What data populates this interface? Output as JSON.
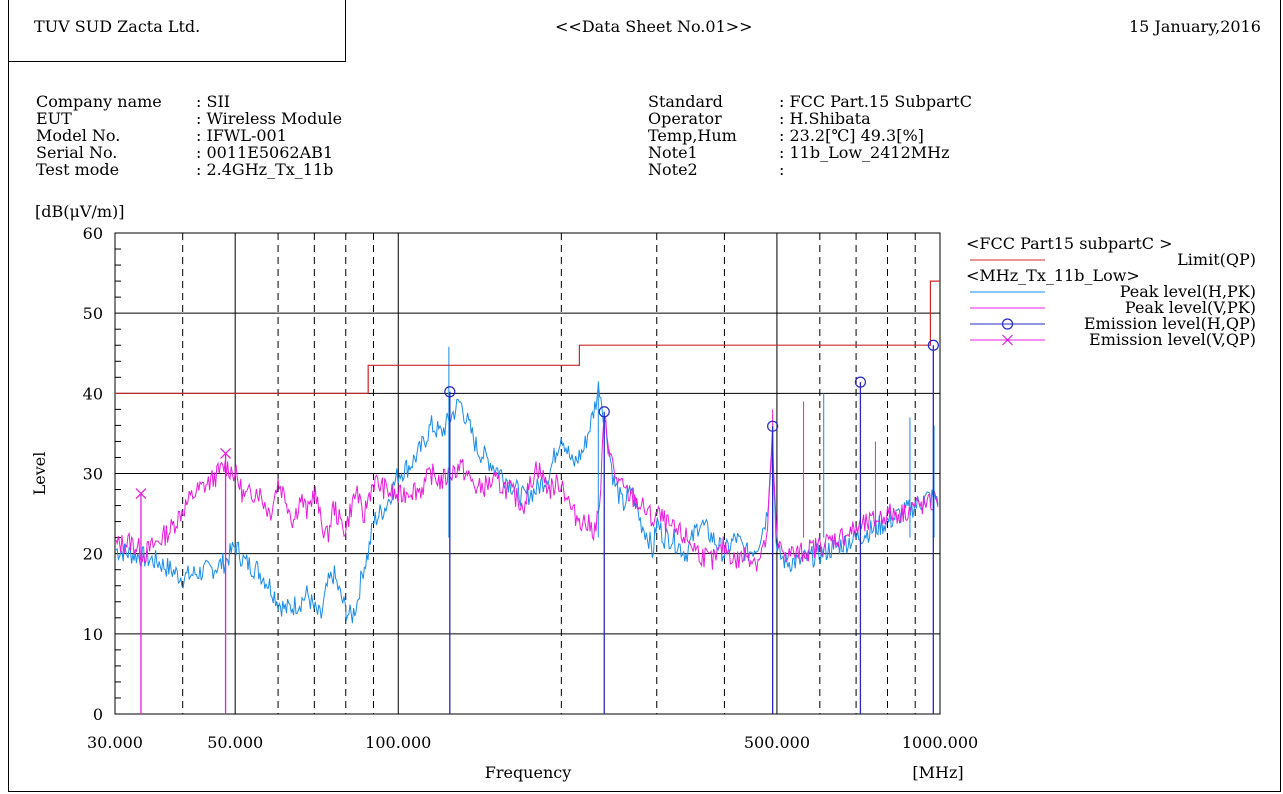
{
  "header": {
    "company": "TUV SUD Zacta Ltd.",
    "title": "<<Data Sheet No.01>>",
    "date": "15 January,2016"
  },
  "info_left": [
    {
      "label": "Company name",
      "value": ": SII"
    },
    {
      "label": "EUT",
      "value": ": Wireless Module"
    },
    {
      "label": "Model No.",
      "value": ": IFWL-001"
    },
    {
      "label": "Serial No.",
      "value": ": 0011E5062AB1"
    },
    {
      "label": "Test mode",
      "value": ": 2.4GHz_Tx_11b"
    }
  ],
  "info_right": [
    {
      "label": "Standard",
      "value": ": FCC Part.15 SubpartC"
    },
    {
      "label": "Operator",
      "value": ": H.Shibata"
    },
    {
      "label": "Temp,Hum",
      "value": ": 23.2[℃] 49.3[%]"
    },
    {
      "label": "Note1",
      "value": ": 11b_Low_2412MHz"
    },
    {
      "label": "Note2",
      "value": ":"
    }
  ],
  "chart_data": {
    "type": "line",
    "xscale": "log",
    "xlim": [
      30,
      1000
    ],
    "ylim": [
      0,
      60
    ],
    "yunit": "[dB(μV/m)]",
    "ylabel": "Level",
    "xlabel": "Frequency",
    "xunit": "[MHz]",
    "x_ticks": [
      30,
      50,
      100,
      500,
      1000
    ],
    "x_tick_labels": [
      "30.000",
      "50.000",
      "100.000",
      "500.000",
      "1000.000"
    ],
    "y_ticks": [
      0,
      10,
      20,
      30,
      40,
      50,
      60
    ],
    "y_tick_labels": [
      "0",
      "10",
      "20",
      "30",
      "40",
      "50",
      "60"
    ],
    "x_dashed_grid": [
      40,
      60,
      70,
      80,
      90,
      200,
      300,
      400,
      600,
      700,
      800,
      900
    ],
    "legend_groups": [
      {
        "title": "<FCC Part15 subpartC >",
        "entries": [
          {
            "name": "Limit(QP)",
            "color": "#cc2a2a",
            "marker": "line"
          }
        ]
      },
      {
        "title": "<MHz_Tx_11b_Low>",
        "entries": [
          {
            "name": "Peak level(H,PK)",
            "color": "#1a8ce8",
            "marker": "line"
          },
          {
            "name": "Peak level(V,PK)",
            "color": "#e81ce0",
            "marker": "line"
          },
          {
            "name": "Emission level(H,QP)",
            "color": "#2727c8",
            "marker": "circle"
          },
          {
            "name": "Emission level(V,QP)",
            "color": "#e81ce0",
            "marker": "cross"
          }
        ]
      }
    ],
    "limit_qp": {
      "color": "#cc2a2a",
      "x": [
        30,
        88,
        88,
        216,
        216,
        960,
        960,
        1000
      ],
      "y": [
        40,
        40,
        43.5,
        43.5,
        46,
        46,
        54,
        54
      ]
    },
    "peak_h": {
      "name": "Peak level(H,PK)",
      "color": "#1a8ce8",
      "x": [
        30,
        32,
        34,
        36,
        38,
        40,
        42,
        45,
        48,
        50,
        52,
        55,
        58,
        60,
        62,
        64,
        66,
        68,
        70,
        72,
        74,
        76,
        78,
        80,
        82,
        84,
        86,
        88,
        90,
        95,
        100,
        105,
        110,
        115,
        120,
        125,
        130,
        140,
        150,
        160,
        170,
        180,
        190,
        200,
        210,
        220,
        230,
        235,
        240,
        250,
        260,
        270,
        280,
        290,
        295,
        300,
        310,
        320,
        340,
        360,
        380,
        400,
        420,
        440,
        460,
        480,
        490,
        500,
        520,
        550,
        600,
        650,
        700,
        750,
        800,
        850,
        900,
        950,
        1000
      ],
      "y": [
        20.5,
        20,
        19.5,
        19,
        18,
        17,
        17.5,
        18,
        19,
        21,
        19,
        18,
        16,
        14,
        13,
        13.5,
        14,
        15,
        13,
        12,
        16,
        17.5,
        15,
        13,
        12,
        14,
        18,
        20,
        24,
        26,
        30,
        31,
        33,
        36,
        35,
        37,
        39,
        33,
        31,
        29,
        27,
        28,
        30,
        35,
        31,
        33,
        38,
        41,
        37,
        29,
        26,
        28,
        24,
        22,
        20,
        24,
        22,
        22,
        20,
        24,
        22,
        20,
        22,
        20,
        21,
        25,
        34,
        20,
        19,
        19,
        20,
        21,
        22,
        23,
        24,
        25,
        26,
        27,
        27
      ]
    },
    "peak_v": {
      "name": "Peak level(V,PK)",
      "color": "#e81ce0",
      "x": [
        30,
        32,
        34,
        36,
        38,
        40,
        42,
        45,
        48,
        50,
        52,
        55,
        58,
        60,
        62,
        64,
        66,
        68,
        70,
        72,
        74,
        76,
        78,
        80,
        82,
        84,
        86,
        88,
        90,
        95,
        100,
        105,
        110,
        115,
        120,
        125,
        130,
        140,
        150,
        160,
        170,
        180,
        190,
        200,
        210,
        220,
        230,
        235,
        240,
        250,
        260,
        270,
        280,
        290,
        295,
        300,
        310,
        320,
        340,
        360,
        380,
        400,
        420,
        440,
        460,
        480,
        490,
        500,
        520,
        550,
        600,
        650,
        700,
        750,
        800,
        850,
        900,
        950,
        1000
      ],
      "y": [
        21,
        21.5,
        20,
        21.5,
        23,
        25.5,
        27.5,
        29,
        31,
        30,
        27,
        28,
        25,
        29,
        27,
        24,
        27,
        25,
        28,
        24,
        22,
        26,
        24,
        23,
        26,
        28,
        24,
        27,
        29,
        28,
        27,
        28,
        28,
        30,
        29,
        30,
        31,
        28,
        29,
        28,
        26,
        31,
        28,
        29,
        25,
        24,
        23,
        25,
        37,
        30,
        28,
        27,
        26,
        25,
        24,
        25,
        24,
        23,
        22,
        20,
        19,
        21,
        19,
        20,
        19,
        22,
        35,
        21,
        20,
        20,
        21,
        22,
        23,
        24,
        25,
        25,
        26,
        26,
        27
      ]
    },
    "emission_h": {
      "name": "Emission level(H,QP)",
      "color": "#2727c8",
      "x": [
        124.5,
        240,
        491,
        713,
        972
      ],
      "y": [
        40.2,
        37.7,
        35.9,
        41.4,
        46.0
      ]
    },
    "emission_v": {
      "name": "Emission level(V,QP)",
      "color": "#e81ce0",
      "x": [
        33.5,
        48.0
      ],
      "y": [
        27.5,
        32.5
      ]
    },
    "spikes": [
      {
        "x": 124.0,
        "y": 45.8,
        "color": "#1a8ce8"
      },
      {
        "x": 234.0,
        "y": 41.5,
        "color": "#1a8ce8"
      },
      {
        "x": 300.0,
        "y": 22.0,
        "color": "#1a8ce8"
      },
      {
        "x": 491.0,
        "y": 38.0,
        "color": "#e81ce0"
      },
      {
        "x": 560.0,
        "y": 39.0,
        "color": "#e81ce0"
      },
      {
        "x": 610.0,
        "y": 40.0,
        "color": "#1a8ce8"
      },
      {
        "x": 760.0,
        "y": 34.0,
        "color": "#e81ce0"
      },
      {
        "x": 880.0,
        "y": 37.0,
        "color": "#1a8ce8"
      },
      {
        "x": 975.0,
        "y": 36.0,
        "color": "#1a8ce8"
      }
    ]
  }
}
